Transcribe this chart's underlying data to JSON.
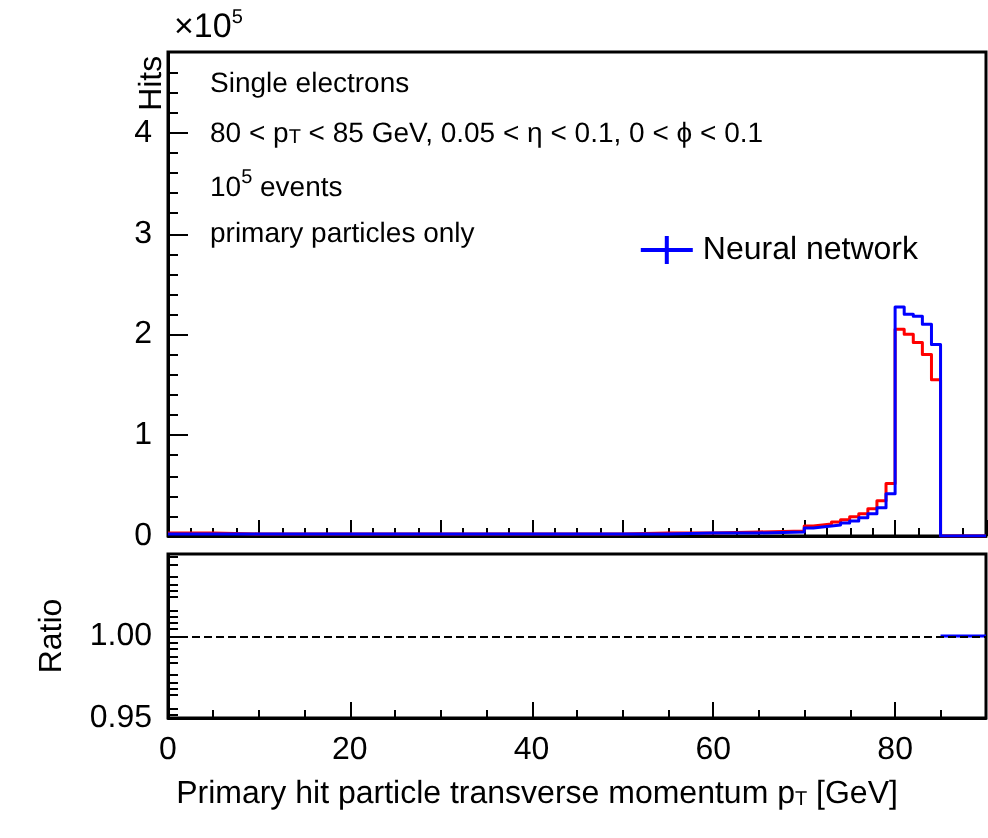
{
  "chart_data": [
    {
      "type": "histogram",
      "ylabel": "Hits",
      "bins": [
        0,
        5,
        10,
        15,
        20,
        25,
        30,
        35,
        40,
        45,
        50,
        55,
        60,
        65,
        70,
        71,
        72,
        73,
        74,
        75,
        76,
        77,
        78,
        79,
        80,
        81,
        82,
        83,
        84,
        85,
        86,
        87,
        88,
        89,
        90
      ],
      "series": [
        {
          "color": "#ff0000",
          "values": [
            0.03,
            0.02,
            0.02,
            0.02,
            0.02,
            0.02,
            0.02,
            0.02,
            0.02,
            0.02,
            0.03,
            0.03,
            0.04,
            0.05,
            0.1,
            0.11,
            0.12,
            0.14,
            0.16,
            0.19,
            0.22,
            0.27,
            0.35,
            0.52,
            2.05,
            2.0,
            1.92,
            1.8,
            1.55,
            0,
            0,
            0,
            0,
            0
          ]
        },
        {
          "name": "Neural network",
          "color": "#0000ff",
          "values": [
            0.02,
            0.02,
            0.02,
            0.02,
            0.02,
            0.02,
            0.02,
            0.02,
            0.02,
            0.02,
            0.02,
            0.03,
            0.03,
            0.04,
            0.08,
            0.09,
            0.1,
            0.11,
            0.13,
            0.15,
            0.18,
            0.22,
            0.28,
            0.42,
            2.27,
            2.2,
            2.18,
            2.1,
            1.9,
            0,
            0,
            0,
            0,
            0
          ]
        }
      ],
      "xlim": [
        0,
        90
      ],
      "ylim": [
        0,
        4.8
      ],
      "yticks": [
        0,
        1,
        2,
        3,
        4
      ],
      "tick_labels": "y",
      "legend": "top right",
      "annotations": [
        "×10$^{5}$",
        "Single electrons",
        "80 < p$_{T}$ < 85 GeV, 0.05 < η < 0.1, 0 < ϕ < 0.1",
        "10$^{5}$ events",
        "primary particles only"
      ]
    },
    {
      "type": "step",
      "xlabel": "Primary hit particle transverse momentum p$_{T}$ [GeV]",
      "ylabel": "Ratio",
      "series": [
        {
          "color": "#0000ff",
          "x": [
            85,
            90
          ],
          "values": [
            1,
            1
          ]
        }
      ],
      "xlim": [
        0,
        90
      ],
      "xticks": [
        0,
        20,
        40,
        60,
        80
      ],
      "ylim": [
        0.95,
        1.05
      ],
      "yticks": [
        0.95,
        {
          "value": 1,
          "label": "1.00"
        }
      ],
      "ref_lines": [
        {
          "axis": "y",
          "value": 1,
          "color": "#000000",
          "line_style": "dashed"
        }
      ]
    }
  ]
}
